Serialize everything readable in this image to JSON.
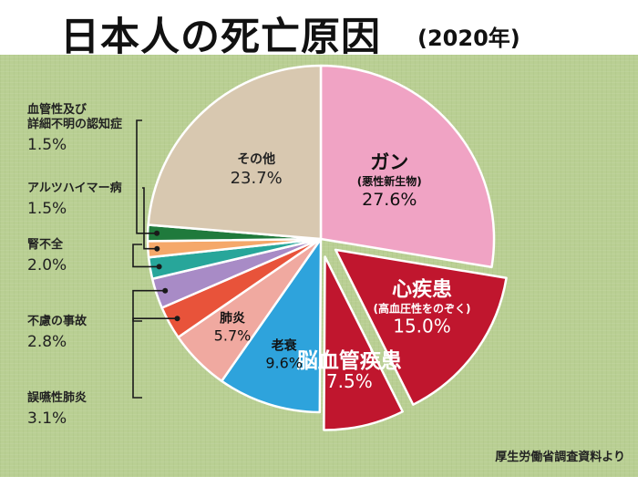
{
  "header": {
    "title": "日本人の死亡原因",
    "year": "(2020年)"
  },
  "source": "厚生労働省調査資料より",
  "colors": {
    "background": "#b9cf93",
    "title_bg": "#ffffff"
  },
  "chart_data": {
    "type": "pie",
    "title": "日本人の死亡原因(2020年)",
    "start": "12 o'clock",
    "direction": "clockwise",
    "exploded": [
      "心疾患",
      "脳血管疾患"
    ],
    "slices": [
      {
        "name": "ガン",
        "sub": "(悪性新生物)",
        "value": 27.6,
        "value_label": "27.6%",
        "color": "#f0a3c4"
      },
      {
        "name": "心疾患",
        "sub": "(高血圧性をのぞく)",
        "value": 15.0,
        "value_label": "15.0%",
        "color": "#c0162e"
      },
      {
        "name": "脳血管疾患",
        "sub": "",
        "value": 7.5,
        "value_label": "7.5%",
        "color": "#c0162e"
      },
      {
        "name": "老衰",
        "sub": "",
        "value": 9.6,
        "value_label": "9.6%",
        "color": "#2ea3dc"
      },
      {
        "name": "肺炎",
        "sub": "",
        "value": 5.7,
        "value_label": "5.7%",
        "color": "#f0a9a0"
      },
      {
        "name": "誤嚥性肺炎",
        "sub": "",
        "value": 3.1,
        "value_label": "3.1%",
        "color": "#e8533a"
      },
      {
        "name": "不慮の事故",
        "sub": "",
        "value": 2.8,
        "value_label": "2.8%",
        "color": "#a88bc6"
      },
      {
        "name": "腎不全",
        "sub": "",
        "value": 2.0,
        "value_label": "2.0%",
        "color": "#27a69a"
      },
      {
        "name": "アルツハイマー病",
        "sub": "",
        "value": 1.5,
        "value_label": "1.5%",
        "color": "#f5a86a"
      },
      {
        "name": "血管性及び詳細不明の認知症",
        "sub": "",
        "value": 1.5,
        "value_label": "1.5%",
        "color": "#1f7a3c"
      },
      {
        "name": "その他",
        "sub": "",
        "value": 23.7,
        "value_label": "23.7%",
        "color": "#d8c8b0"
      }
    ],
    "external_labels": [
      {
        "lines": [
          "血管性及び",
          "詳細不明の認知症"
        ],
        "value_label": "1.5%"
      },
      {
        "lines": [
          "アルツハイマー病"
        ],
        "value_label": "1.5%"
      },
      {
        "lines": [
          "腎不全"
        ],
        "value_label": "2.0%"
      },
      {
        "lines": [
          "不慮の事故"
        ],
        "value_label": "2.8%"
      },
      {
        "lines": [
          "誤嚥性肺炎"
        ],
        "value_label": "3.1%"
      }
    ]
  }
}
